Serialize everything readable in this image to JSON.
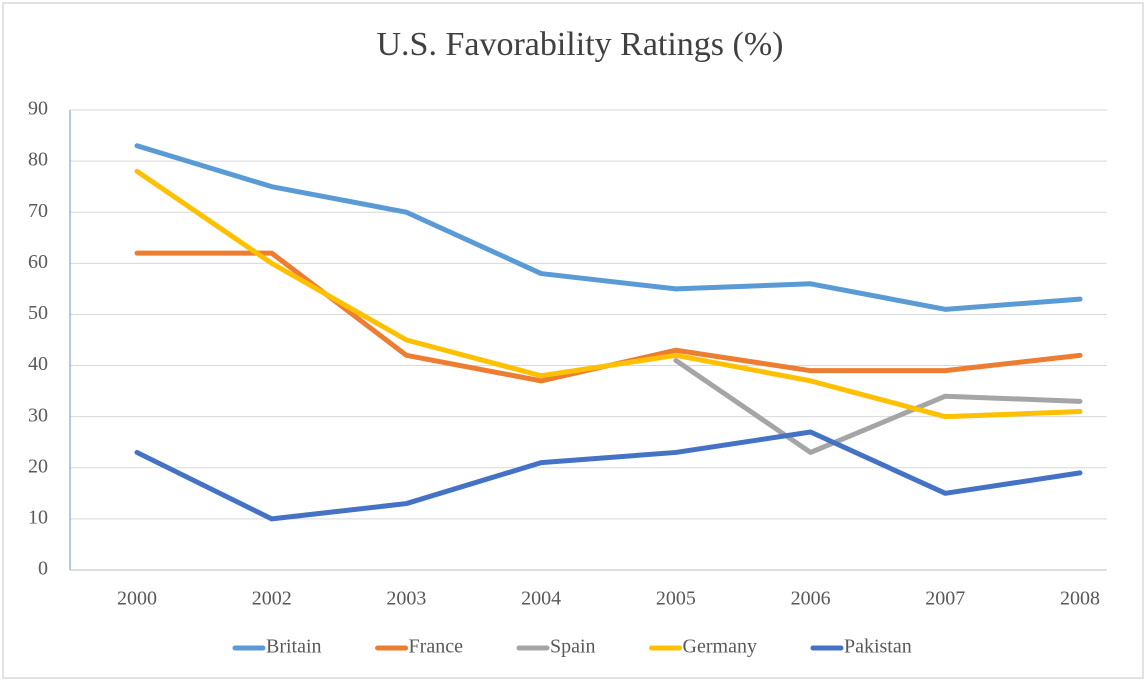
{
  "chart_data": {
    "type": "line",
    "title": "U.S. Favorability Ratings (%)",
    "categories": [
      "2000",
      "2002",
      "2003",
      "2004",
      "2005",
      "2006",
      "2007",
      "2008"
    ],
    "series": [
      {
        "name": "Britain",
        "color": "#5b9bd5",
        "values": [
          83,
          75,
          70,
          58,
          55,
          56,
          51,
          53
        ]
      },
      {
        "name": "France",
        "color": "#ed7d31",
        "values": [
          62,
          62,
          42,
          37,
          43,
          39,
          39,
          42
        ]
      },
      {
        "name": "Spain",
        "color": "#a5a5a5",
        "values": [
          null,
          null,
          null,
          null,
          41,
          23,
          34,
          33
        ]
      },
      {
        "name": "Germany",
        "color": "#ffc000",
        "values": [
          78,
          60,
          45,
          38,
          42,
          37,
          30,
          31
        ]
      },
      {
        "name": "Pakistan",
        "color": "#4472c4",
        "values": [
          23,
          10,
          13,
          21,
          23,
          27,
          15,
          19
        ]
      }
    ],
    "ylim": [
      0,
      90
    ],
    "yticks": [
      0,
      10,
      20,
      30,
      40,
      50,
      60,
      70,
      80,
      90
    ],
    "grid": true,
    "legend": "bottom"
  }
}
